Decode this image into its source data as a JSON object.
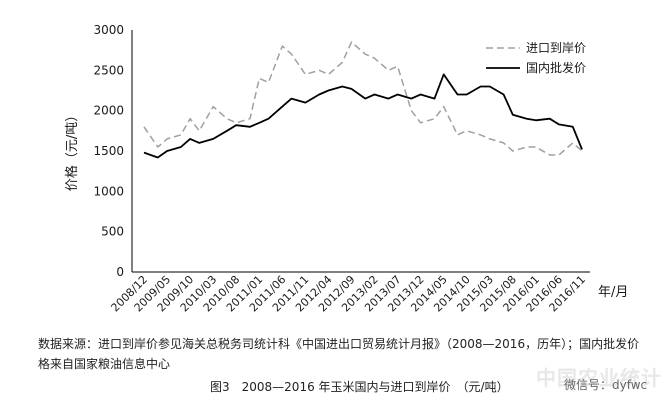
{
  "chart_data": {
    "type": "line",
    "xlabel": "年/月",
    "ylabel": "价格（元/吨）",
    "ylim": [
      0,
      3000
    ],
    "yticks": [
      0,
      500,
      1000,
      1500,
      2000,
      2500,
      3000
    ],
    "xticks": [
      "2008/12",
      "2009/05",
      "2009/10",
      "2010/03",
      "2010/08",
      "2011/01",
      "2011/06",
      "2011/11",
      "2012/04",
      "2012/09",
      "2013/02",
      "2013/07",
      "2013/12",
      "2014/05",
      "2014/10",
      "2015/03",
      "2015/08",
      "2016/01",
      "2016/06",
      "2016/11"
    ],
    "legend_position": "top-right",
    "grid": false,
    "series": [
      {
        "name": "进口到岸价",
        "style": "dashed",
        "color": "#a0a0a0",
        "x": [
          "2008/12",
          "2009/03",
          "2009/05",
          "2009/08",
          "2009/10",
          "2009/12",
          "2010/03",
          "2010/06",
          "2010/08",
          "2010/11",
          "2011/01",
          "2011/03",
          "2011/06",
          "2011/08",
          "2011/11",
          "2012/02",
          "2012/04",
          "2012/07",
          "2012/09",
          "2012/12",
          "2013/02",
          "2013/05",
          "2013/07",
          "2013/10",
          "2013/12",
          "2014/03",
          "2014/05",
          "2014/08",
          "2014/10",
          "2015/01",
          "2015/03",
          "2015/06",
          "2015/08",
          "2015/11",
          "2016/01",
          "2016/04",
          "2016/06",
          "2016/09",
          "2016/11"
        ],
        "values": [
          1800,
          1550,
          1650,
          1700,
          1900,
          1750,
          2050,
          1900,
          1850,
          1900,
          2400,
          2350,
          2800,
          2700,
          2450,
          2500,
          2450,
          2600,
          2850,
          2700,
          2650,
          2500,
          2550,
          2000,
          1850,
          1900,
          2050,
          1700,
          1750,
          1700,
          1650,
          1600,
          1500,
          1550,
          1550,
          1450,
          1450,
          1600,
          1500
        ]
      },
      {
        "name": "国内批发价",
        "style": "solid",
        "color": "#000000",
        "x": [
          "2008/12",
          "2009/03",
          "2009/05",
          "2009/08",
          "2009/10",
          "2009/12",
          "2010/03",
          "2010/06",
          "2010/08",
          "2010/11",
          "2011/01",
          "2011/03",
          "2011/06",
          "2011/08",
          "2011/11",
          "2012/02",
          "2012/04",
          "2012/07",
          "2012/09",
          "2012/12",
          "2013/02",
          "2013/05",
          "2013/07",
          "2013/10",
          "2013/12",
          "2014/03",
          "2014/05",
          "2014/08",
          "2014/10",
          "2015/01",
          "2015/03",
          "2015/06",
          "2015/08",
          "2015/11",
          "2016/01",
          "2016/04",
          "2016/06",
          "2016/09",
          "2016/11"
        ],
        "values": [
          1480,
          1420,
          1500,
          1550,
          1650,
          1600,
          1650,
          1750,
          1820,
          1800,
          1850,
          1900,
          2050,
          2150,
          2100,
          2200,
          2250,
          2300,
          2270,
          2150,
          2200,
          2150,
          2200,
          2150,
          2200,
          2150,
          2450,
          2200,
          2200,
          2300,
          2300,
          2200,
          1950,
          1900,
          1880,
          1900,
          1830,
          1800,
          1520
        ]
      }
    ]
  },
  "source_note": "数据来源：进口到岸价参见海关总税务司统计科《中国进出口贸易统计月报》（2008—2016，历年）；国内批发价格来自国家粮油信息中心",
  "caption": "图3　2008—2016 年玉米国内与进口到岸价　（元/吨）",
  "watermark": "中国农业统计",
  "wechat_label": "微信号：dyfwc"
}
